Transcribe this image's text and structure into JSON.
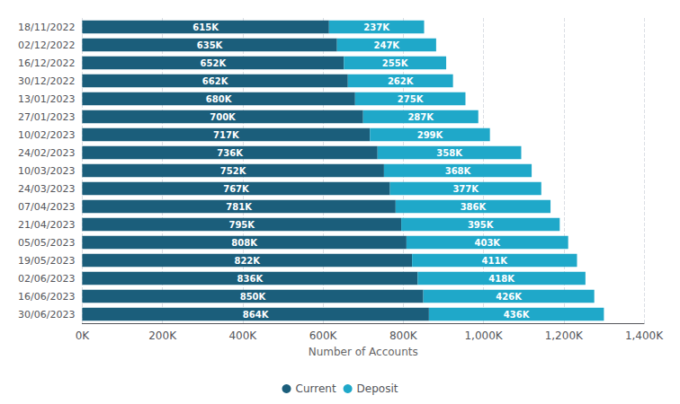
{
  "chart_data": {
    "type": "bar",
    "orientation": "horizontal",
    "stacked": true,
    "data_labels": true,
    "grid": true,
    "legend": "bottom",
    "xlabel": "Number of Accounts",
    "categories": [
      "18/11/2022",
      "02/12/2022",
      "16/12/2022",
      "30/12/2022",
      "13/01/2023",
      "27/01/2023",
      "10/02/2023",
      "24/02/2023",
      "10/03/2023",
      "24/03/2023",
      "07/04/2023",
      "21/04/2023",
      "05/05/2023",
      "19/05/2023",
      "02/06/2023",
      "16/06/2023",
      "30/06/2023"
    ],
    "series": [
      {
        "name": "Current",
        "color": "#1b5e7b",
        "values": [
          615000,
          635000,
          652000,
          662000,
          680000,
          700000,
          717000,
          736000,
          752000,
          767000,
          781000,
          795000,
          808000,
          822000,
          836000,
          850000,
          864000
        ],
        "value_labels": [
          "615K",
          "635K",
          "652K",
          "662K",
          "680K",
          "700K",
          "717K",
          "736K",
          "752K",
          "767K",
          "781K",
          "795K",
          "808K",
          "822K",
          "836K",
          "850K",
          "864K"
        ]
      },
      {
        "name": "Deposit",
        "color": "#1fa8c9",
        "values": [
          237000,
          247000,
          255000,
          262000,
          275000,
          287000,
          299000,
          358000,
          368000,
          377000,
          386000,
          395000,
          403000,
          411000,
          418000,
          426000,
          436000
        ],
        "value_labels": [
          "237K",
          "247K",
          "255K",
          "262K",
          "275K",
          "287K",
          "299K",
          "358K",
          "368K",
          "377K",
          "386K",
          "395K",
          "403K",
          "411K",
          "418K",
          "426K",
          "436K"
        ]
      }
    ],
    "xlim": [
      0,
      1400000
    ],
    "xticks": [
      {
        "value": 0,
        "label": "0K"
      },
      {
        "value": 200000,
        "label": "200K"
      },
      {
        "value": 400000,
        "label": "400K"
      },
      {
        "value": 600000,
        "label": "600K"
      },
      {
        "value": 800000,
        "label": "800K"
      },
      {
        "value": 1000000,
        "label": "1,000K"
      },
      {
        "value": 1200000,
        "label": "1,200K"
      },
      {
        "value": 1400000,
        "label": "1,400K"
      }
    ]
  }
}
